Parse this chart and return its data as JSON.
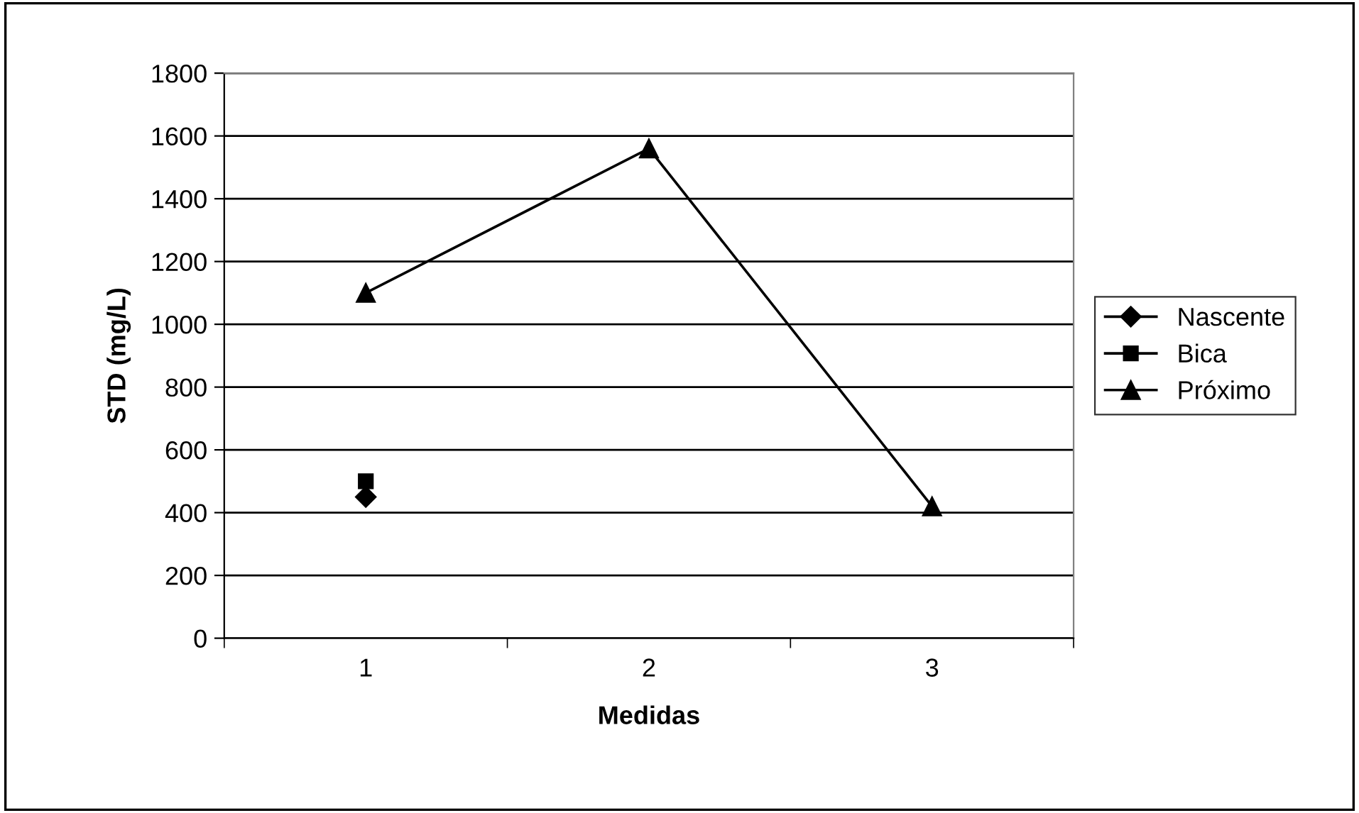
{
  "chart_data": {
    "type": "line",
    "xlabel": "Medidas",
    "ylabel": "STD (mg/L)",
    "categories": [
      "1",
      "2",
      "3"
    ],
    "series": [
      {
        "name": "Nascente",
        "color": "#000000",
        "marker": "diamond",
        "values": [
          450,
          null,
          null
        ]
      },
      {
        "name": "Bica",
        "color": "#000000",
        "marker": "square",
        "values": [
          500,
          null,
          null
        ]
      },
      {
        "name": "Próximo",
        "color": "#000000",
        "marker": "triangle",
        "values": [
          1100,
          1560,
          420
        ]
      }
    ],
    "ylim": [
      0,
      1800
    ],
    "yticks": [
      0,
      200,
      400,
      600,
      800,
      1000,
      1200,
      1400,
      1600,
      1800
    ],
    "grid": "y",
    "legend": "right",
    "line_style": "solid"
  }
}
